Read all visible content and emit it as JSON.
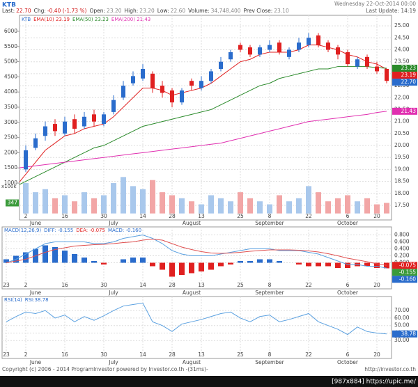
{
  "header": {
    "symbol": "KTB",
    "datetime": "Wednesday 22-Oct-2014 00:00",
    "update": "Last Update: 14:19",
    "quote": [
      {
        "label": "Last:",
        "value": "22.70",
        "color": "#d01010"
      },
      {
        "label": "Chg:",
        "value": "-0.40 (-1.73 %)",
        "color": "#d01010"
      },
      {
        "label": "Open:",
        "value": "23.20",
        "color": "#888888"
      },
      {
        "label": "High:",
        "value": "23.20",
        "color": "#888888"
      },
      {
        "label": "Low:",
        "value": "22.60",
        "color": "#888888"
      },
      {
        "label": "Volume:",
        "value": "34,748,400",
        "color": "#888888"
      },
      {
        "label": "Prev Close:",
        "value": "23.10",
        "color": "#888888"
      }
    ]
  },
  "chart_data": [
    {
      "type": "candlestick",
      "legend": [
        {
          "text": "KTB",
          "color": "#2a6ccc"
        },
        {
          "text": "EMA(10) 23.19",
          "color": "#e02020"
        },
        {
          "text": "EMA(50) 23.23",
          "color": "#2a8a2a"
        },
        {
          "text": "EMA(200) 21.43",
          "color": "#e030b0"
        }
      ],
      "categories": [
        "23",
        null,
        "2",
        null,
        null,
        null,
        "16",
        null,
        null,
        null,
        "30",
        null,
        null,
        null,
        "14",
        null,
        null,
        "28",
        null,
        null,
        "13",
        null,
        null,
        null,
        "25",
        null,
        null,
        "8",
        null,
        null,
        null,
        "22",
        null,
        null,
        null,
        "6",
        null,
        null,
        "20",
        null
      ],
      "months": [
        null,
        null,
        null,
        "June",
        null,
        null,
        null,
        null,
        null,
        null,
        null,
        "July",
        null,
        null,
        null,
        null,
        null,
        null,
        null,
        "August",
        null,
        null,
        null,
        null,
        null,
        null,
        null,
        "September",
        null,
        null,
        null,
        null,
        null,
        null,
        null,
        "October",
        null,
        null,
        null,
        null
      ],
      "open": [
        18.0,
        18.3,
        19.0,
        19.9,
        20.4,
        20.9,
        20.5,
        21.1,
        20.8,
        21.3,
        20.9,
        21.4,
        22.0,
        22.6,
        22.8,
        23.0,
        22.5,
        22.3,
        21.8,
        22.7,
        22.4,
        22.7,
        23.2,
        23.6,
        24.2,
        24.1,
        23.8,
        24.0,
        24.3,
        23.7,
        24.0,
        24.2,
        24.6,
        24.3,
        24.1,
        23.9,
        23.3,
        23.7,
        23.3,
        23.2
      ],
      "high": [
        18.5,
        19.1,
        20.0,
        20.5,
        21.0,
        21.1,
        21.2,
        21.3,
        21.4,
        21.5,
        21.4,
        22.1,
        22.7,
        23.1,
        23.4,
        23.1,
        22.7,
        22.4,
        22.4,
        22.8,
        22.9,
        23.2,
        23.7,
        24.0,
        24.3,
        24.2,
        24.2,
        24.4,
        24.4,
        24.1,
        24.5,
        24.7,
        24.7,
        24.4,
        24.2,
        24.0,
        23.7,
        23.8,
        23.5,
        23.2
      ],
      "low": [
        17.8,
        18.2,
        18.9,
        19.8,
        20.2,
        20.4,
        20.4,
        20.5,
        20.7,
        20.8,
        20.8,
        21.3,
        21.9,
        22.5,
        22.7,
        22.2,
        22.0,
        21.6,
        21.7,
        22.3,
        22.3,
        22.6,
        23.1,
        23.5,
        23.9,
        23.7,
        23.7,
        23.9,
        23.8,
        23.6,
        23.9,
        24.1,
        24.1,
        23.9,
        23.6,
        23.3,
        23.2,
        23.2,
        23.0,
        22.6
      ],
      "close": [
        18.3,
        18.9,
        19.8,
        20.3,
        20.8,
        20.6,
        21.0,
        20.7,
        21.2,
        21.0,
        21.3,
        21.9,
        22.5,
        22.9,
        23.2,
        22.4,
        22.2,
        21.8,
        22.3,
        22.5,
        22.7,
        23.1,
        23.5,
        23.9,
        24.0,
        23.8,
        24.1,
        24.2,
        23.9,
        24.0,
        24.3,
        24.5,
        24.2,
        24.0,
        23.8,
        23.4,
        23.6,
        23.3,
        23.1,
        22.7
      ],
      "up_color": "#2a6ccc",
      "down_color": "#e02020",
      "ylim": [
        16.83,
        25.44
      ],
      "yticks": [
        {
          "value": 25,
          "label": "25.00"
        },
        {
          "value": 24.5,
          "label": "24.50"
        },
        {
          "value": 24,
          "label": "24.00"
        },
        {
          "value": 23.5,
          "label": "23.50"
        },
        {
          "value": 23,
          "label": "23.00"
        },
        {
          "value": 22.5,
          "label": "22.50"
        },
        {
          "value": 22,
          "label": "22.00"
        },
        {
          "value": 21.5,
          "label": "21.50"
        },
        {
          "value": 21,
          "label": "21.00"
        },
        {
          "value": 20.5,
          "label": "20.50"
        },
        {
          "value": 20,
          "label": "20.00"
        },
        {
          "value": 19.5,
          "label": "19.50"
        },
        {
          "value": 19,
          "label": "19.00"
        },
        {
          "value": 18.5,
          "label": "18.50"
        },
        {
          "value": 18,
          "label": "18.00"
        },
        {
          "value": 17.5,
          "label": "17.50"
        }
      ],
      "series": [
        {
          "color": "#e02020",
          "values": [
            18.0,
            18.3,
            18.8,
            19.3,
            19.8,
            20.1,
            20.4,
            20.5,
            20.7,
            20.8,
            20.9,
            21.2,
            21.6,
            22.0,
            22.4,
            22.4,
            22.3,
            22.1,
            22.2,
            22.3,
            22.4,
            22.6,
            22.9,
            23.2,
            23.5,
            23.6,
            23.8,
            23.9,
            23.9,
            23.9,
            24.0,
            24.2,
            24.2,
            24.1,
            24.0,
            23.8,
            23.7,
            23.5,
            23.4,
            23.19
          ]
        },
        {
          "color": "#2a8a2a",
          "values": [
            18.2,
            18.3,
            18.5,
            18.7,
            18.9,
            19.1,
            19.3,
            19.5,
            19.7,
            19.9,
            20.0,
            20.2,
            20.4,
            20.6,
            20.8,
            20.9,
            21.0,
            21.1,
            21.2,
            21.3,
            21.4,
            21.5,
            21.7,
            21.9,
            22.1,
            22.3,
            22.5,
            22.6,
            22.8,
            22.9,
            23.0,
            23.1,
            23.2,
            23.2,
            23.3,
            23.3,
            23.3,
            23.3,
            23.25,
            23.23
          ]
        },
        {
          "color": "#e030b0",
          "values": [
            19.0,
            19.05,
            19.1,
            19.15,
            19.2,
            19.25,
            19.3,
            19.35,
            19.4,
            19.45,
            19.5,
            19.55,
            19.6,
            19.65,
            19.7,
            19.75,
            19.8,
            19.85,
            19.9,
            19.95,
            20.0,
            20.05,
            20.1,
            20.2,
            20.3,
            20.4,
            20.5,
            20.6,
            20.7,
            20.8,
            20.9,
            21.0,
            21.05,
            21.1,
            21.15,
            21.2,
            21.25,
            21.3,
            21.38,
            21.43
          ]
        }
      ],
      "tags": [
        {
          "value": 23.23,
          "label": "23.23",
          "color": "#2a8a2a"
        },
        {
          "value": 23.19,
          "label": "23.19",
          "color": "#e02020"
        },
        {
          "value": 22.7,
          "label": "22.70",
          "color": "#2a6ccc"
        },
        {
          "value": 21.43,
          "label": "21.43",
          "color": "#e030b0"
        }
      ],
      "volume": {
        "values": [
          1100,
          900,
          1000,
          700,
          800,
          500,
          600,
          400,
          700,
          500,
          600,
          1000,
          1200,
          900,
          800,
          1100,
          700,
          600,
          500,
          400,
          300,
          600,
          500,
          400,
          700,
          500,
          400,
          300,
          600,
          400,
          500,
          900,
          700,
          400,
          500,
          600,
          400,
          500,
          300,
          347
        ],
        "up_color": "#a9c8ec",
        "down_color": "#f2a6a6",
        "ylim": [
          -260,
          6527
        ],
        "yticks": [
          6000,
          5500,
          5000,
          4500,
          4000,
          3500,
          3000,
          2500,
          2000,
          1500,
          1000
        ],
        "unit_label": "x100k",
        "tag": {
          "value": 347,
          "label": "347",
          "color": "#3a9a3a"
        }
      }
    },
    {
      "type": "macd",
      "legend": [
        {
          "text": "MACD(12,26,9)",
          "color": "#2a6ccc"
        },
        {
          "text": "DIFF: -0.155",
          "color": "#2a6ccc"
        },
        {
          "text": "DEA: -0.075",
          "color": "#e02020"
        },
        {
          "text": "MACD: -0.160",
          "color": "#2a6ccc"
        }
      ],
      "ylim": [
        -0.45,
        0.95
      ],
      "yticks": [
        {
          "value": 0.8,
          "label": "0.800"
        },
        {
          "value": 0.6,
          "label": "0.600"
        },
        {
          "value": 0.4,
          "label": "0.400"
        },
        {
          "value": 0.2,
          "label": "0.200"
        },
        {
          "value": 0,
          "label": "0.000"
        }
      ],
      "histogram": {
        "up_color": "#2a6ccc",
        "down_color": "#e02020",
        "values": [
          0.1,
          0.2,
          0.3,
          0.4,
          0.5,
          0.45,
          0.35,
          0.25,
          0.15,
          0.05,
          -0.05,
          0.0,
          0.1,
          0.15,
          0.15,
          -0.1,
          -0.2,
          -0.4,
          -0.35,
          -0.3,
          -0.25,
          -0.2,
          -0.1,
          -0.05,
          0.05,
          0.05,
          0.1,
          0.1,
          0.05,
          0.0,
          -0.05,
          -0.1,
          -0.1,
          -0.1,
          -0.15,
          -0.15,
          -0.1,
          -0.1,
          -0.15,
          -0.16
        ]
      },
      "series": [
        {
          "color": "#5aa0e0",
          "values": [
            0.0,
            0.1,
            0.25,
            0.4,
            0.55,
            0.6,
            0.6,
            0.6,
            0.6,
            0.55,
            0.55,
            0.6,
            0.7,
            0.75,
            0.8,
            0.7,
            0.55,
            0.35,
            0.25,
            0.2,
            0.2,
            0.2,
            0.25,
            0.3,
            0.35,
            0.4,
            0.4,
            0.4,
            0.35,
            0.35,
            0.35,
            0.3,
            0.25,
            0.15,
            0.05,
            -0.05,
            -0.05,
            -0.1,
            -0.1,
            -0.155
          ]
        },
        {
          "color": "#e05050",
          "values": [
            0.0,
            0.05,
            0.1,
            0.2,
            0.3,
            0.38,
            0.43,
            0.48,
            0.5,
            0.52,
            0.53,
            0.55,
            0.58,
            0.6,
            0.65,
            0.68,
            0.65,
            0.55,
            0.45,
            0.38,
            0.32,
            0.28,
            0.27,
            0.28,
            0.3,
            0.33,
            0.35,
            0.37,
            0.37,
            0.37,
            0.36,
            0.34,
            0.31,
            0.26,
            0.2,
            0.13,
            0.08,
            0.03,
            -0.03,
            -0.075
          ]
        }
      ],
      "tags": [
        {
          "value": -0.075,
          "label": "-0.075",
          "color": "#e02020"
        },
        {
          "value": -0.155,
          "label": "-0.155",
          "color": "#3a9a3a"
        },
        {
          "value": -0.16,
          "label": "-0.160",
          "color": "#2a6ccc"
        }
      ]
    },
    {
      "type": "rsi",
      "legend": [
        {
          "text": "RSI(14)",
          "color": "#2a6ccc"
        },
        {
          "text": "RSI:38.78",
          "color": "#2a6ccc"
        }
      ],
      "ylim": [
        20,
        85
      ],
      "yticks": [
        {
          "value": 70,
          "label": "70.00"
        },
        {
          "value": 60,
          "label": "60.00"
        },
        {
          "value": 50,
          "label": "50.00"
        },
        {
          "value": 40,
          "label": "40.00"
        },
        {
          "value": 30,
          "label": "30.00"
        }
      ],
      "series": [
        {
          "color": "#5aa0e0",
          "values": [
            55,
            62,
            68,
            66,
            70,
            60,
            64,
            55,
            62,
            57,
            63,
            70,
            76,
            78,
            80,
            55,
            50,
            42,
            52,
            55,
            58,
            62,
            66,
            68,
            60,
            55,
            62,
            64,
            55,
            58,
            62,
            66,
            55,
            50,
            45,
            38,
            48,
            42,
            40,
            38.78
          ]
        }
      ],
      "tags": [
        {
          "value": 38.78,
          "label": "38.78",
          "color": "#2a6ccc"
        }
      ]
    }
  ],
  "footer": {
    "copyright": "Copyright (c) 2006 - 2014 ProgramInvestor powered by Investor.co.th -(31ms)-",
    "site": "http://investor.co.th",
    "watermark": "[987x884] https://upic.me/"
  }
}
